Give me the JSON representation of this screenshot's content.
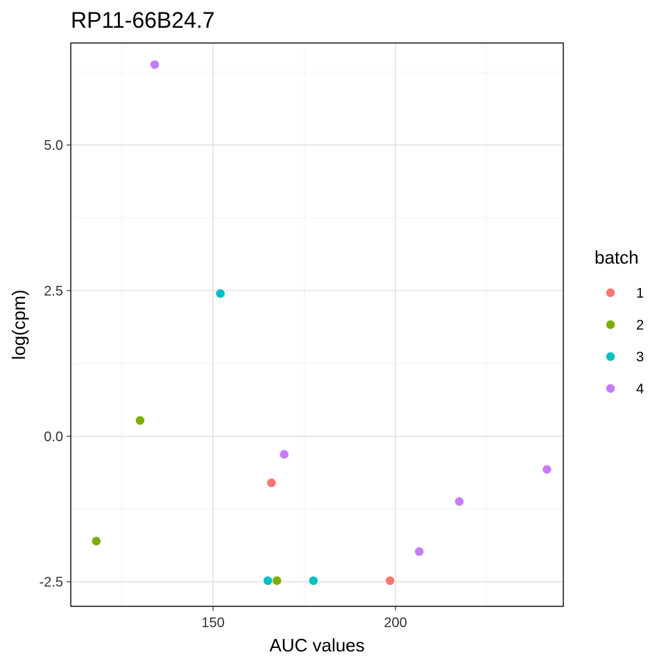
{
  "chart_data": {
    "type": "scatter",
    "title": "RP11-66B24.7",
    "xlabel": "AUC values",
    "ylabel": "log(cpm)",
    "xlim": [
      111,
      246
    ],
    "ylim": [
      -2.92,
      6.75
    ],
    "x_ticks": [
      150,
      200
    ],
    "x_tick_labels": [
      "150",
      "200"
    ],
    "x_minor_ticks": [
      125,
      175,
      225
    ],
    "y_ticks": [
      -2.5,
      0,
      2.5,
      5
    ],
    "y_tick_labels": [
      "-2.5",
      "0.0",
      "2.5",
      "5.0"
    ],
    "y_minor_ticks": [
      -1.25,
      1.25,
      3.75,
      6.25
    ],
    "grid": true,
    "legend": {
      "title": "batch",
      "position": "right",
      "entries": [
        {
          "label": "1",
          "color": "#F8766D"
        },
        {
          "label": "2",
          "color": "#7CAE00"
        },
        {
          "label": "3",
          "color": "#00BFC4"
        },
        {
          "label": "4",
          "color": "#C77CFF"
        }
      ]
    },
    "series": [
      {
        "name": "1",
        "color": "#F8766D",
        "points": [
          [
            166,
            -0.8
          ],
          [
            198.5,
            -2.48
          ]
        ]
      },
      {
        "name": "2",
        "color": "#7CAE00",
        "points": [
          [
            130,
            0.27
          ],
          [
            118,
            -1.8
          ],
          [
            167.5,
            -2.48
          ]
        ]
      },
      {
        "name": "3",
        "color": "#00BFC4",
        "points": [
          [
            152,
            2.45
          ],
          [
            165,
            -2.48
          ],
          [
            177.5,
            -2.48
          ]
        ]
      },
      {
        "name": "4",
        "color": "#C77CFF",
        "points": [
          [
            134,
            6.38
          ],
          [
            169.5,
            -0.31
          ],
          [
            217.5,
            -1.12
          ],
          [
            206.5,
            -1.98
          ],
          [
            241.5,
            -0.57
          ]
        ]
      }
    ]
  }
}
